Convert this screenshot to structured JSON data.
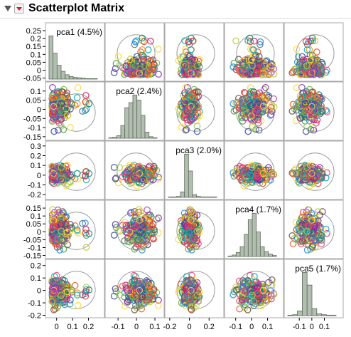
{
  "report": {
    "title": "Scatterplot Matrix"
  },
  "chart_data": {
    "type": "scatter",
    "subtype": "scatterplot-matrix",
    "variables": [
      {
        "name": "pca1",
        "label": "pca1 (4.5%)",
        "range": [
          -0.07,
          0.3
        ],
        "y_ticks": [
          "0.25",
          "0.2",
          "0.15",
          "0.1",
          "0.05",
          "0",
          "-0.05"
        ],
        "y_tick_values": [
          0.25,
          0.2,
          0.15,
          0.1,
          0.05,
          0,
          -0.05
        ],
        "x_ticks": [
          "0",
          "0.1",
          "0.2"
        ],
        "x_tick_values": [
          0,
          0.1,
          0.2
        ],
        "histogram": [
          100,
          60,
          32,
          18,
          10,
          6,
          4,
          3,
          2,
          1,
          1,
          1
        ]
      },
      {
        "name": "pca2",
        "label": "pca2 (2.4%)",
        "range": [
          -0.17,
          0.15
        ],
        "y_ticks": [
          "0.1",
          "0.05",
          "0",
          "-0.05",
          "-0.1",
          "-0.15"
        ],
        "y_tick_values": [
          0.1,
          0.05,
          0,
          -0.05,
          -0.1,
          -0.15
        ],
        "x_ticks": [
          "-0.1",
          "0",
          "0.1"
        ],
        "x_tick_values": [
          -0.1,
          0,
          0.1
        ],
        "histogram": [
          1,
          2,
          5,
          25,
          60,
          70,
          85,
          75,
          45,
          12,
          3,
          1
        ]
      },
      {
        "name": "pca3",
        "label": "pca3 (2.0%)",
        "range": [
          -0.25,
          0.35
        ],
        "y_ticks": [
          "0.3",
          "0.2",
          "0.1",
          "0",
          "-0.1",
          "-0.2"
        ],
        "y_tick_values": [
          0.3,
          0.2,
          0.1,
          0,
          -0.1,
          -0.2
        ],
        "x_ticks": [
          "-0.2",
          "0",
          "0.2"
        ],
        "x_tick_values": [
          -0.2,
          0,
          0.2
        ],
        "histogram": [
          1,
          1,
          2,
          12,
          95,
          58,
          6,
          2,
          1,
          1,
          1,
          1
        ]
      },
      {
        "name": "pca4",
        "label": "pca4 (1.7%)",
        "range": [
          -0.17,
          0.2
        ],
        "y_ticks": [
          "0.15",
          "0.1",
          "0.05",
          "0",
          "-0.05",
          "-0.1",
          "-0.15"
        ],
        "y_tick_values": [
          0.15,
          0.1,
          0.05,
          0,
          -0.05,
          -0.1,
          -0.15
        ],
        "x_ticks": [
          "-0.1",
          "0",
          "0.1"
        ],
        "x_tick_values": [
          -0.1,
          0,
          0.1
        ],
        "histogram": [
          1,
          3,
          8,
          20,
          45,
          75,
          88,
          50,
          20,
          10,
          5,
          2
        ]
      },
      {
        "name": "pca5",
        "label": "pca5 (1.7%)",
        "range": [
          -0.22,
          0.25
        ],
        "y_ticks": [
          "0.2",
          "0.1",
          "0",
          "-0.1",
          "-0.2"
        ],
        "y_tick_values": [
          0.2,
          0.1,
          0,
          -0.1,
          -0.2
        ],
        "x_ticks": [
          "-0.1",
          "0",
          "0.1"
        ],
        "x_tick_values": [
          -0.1,
          0,
          0.1
        ],
        "histogram": [
          1,
          2,
          10,
          92,
          65,
          15,
          4,
          2,
          1,
          1
        ]
      }
    ],
    "points_per_panel": 220,
    "marker": "open-circle",
    "density_ellipse": true,
    "grid": false,
    "colors": {
      "histogram_fill": "#b2beb0",
      "histogram_edge": "#5d6b5b",
      "ellipse": "#9a9a9a",
      "panel_border": "#a8a8a8",
      "point_palette": [
        "#e53935",
        "#1e88e5",
        "#43a047",
        "#fb8c00",
        "#8e24aa",
        "#00acc1",
        "#c0ca33",
        "#6d4c41",
        "#d81b60",
        "#3949ab",
        "#7cb342",
        "#f4511e",
        "#5e35b1",
        "#00897b",
        "#fdd835",
        "#546e7a",
        "#ec407a",
        "#26a69a",
        "#ab47bc",
        "#9ccc65"
      ]
    }
  }
}
